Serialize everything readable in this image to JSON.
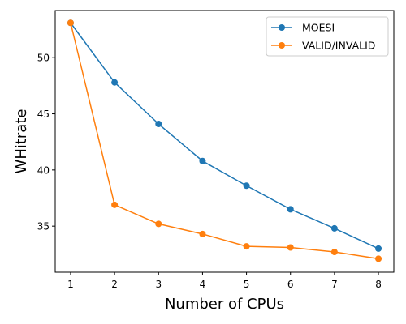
{
  "chart_data": {
    "type": "line",
    "title": "",
    "xlabel": "Number of CPUs",
    "ylabel": "WHitrate",
    "x": [
      1,
      2,
      3,
      4,
      5,
      6,
      7,
      8
    ],
    "xticks": [
      "1",
      "2",
      "3",
      "4",
      "5",
      "6",
      "7",
      "8"
    ],
    "yticks": [
      "35",
      "40",
      "45",
      "50"
    ],
    "xlim": [
      0.65,
      8.35
    ],
    "ylim": [
      30.9,
      54.2
    ],
    "grid": false,
    "legend_position": "top-right",
    "series": [
      {
        "name": "MOESI",
        "color": "#1f77b4",
        "values": [
          53.1,
          47.8,
          44.1,
          40.8,
          38.6,
          36.5,
          34.8,
          33.0
        ]
      },
      {
        "name": "VALID/INVALID",
        "color": "#ff7f0e",
        "values": [
          53.1,
          36.9,
          35.2,
          34.3,
          33.2,
          33.1,
          32.7,
          32.1
        ]
      }
    ]
  }
}
